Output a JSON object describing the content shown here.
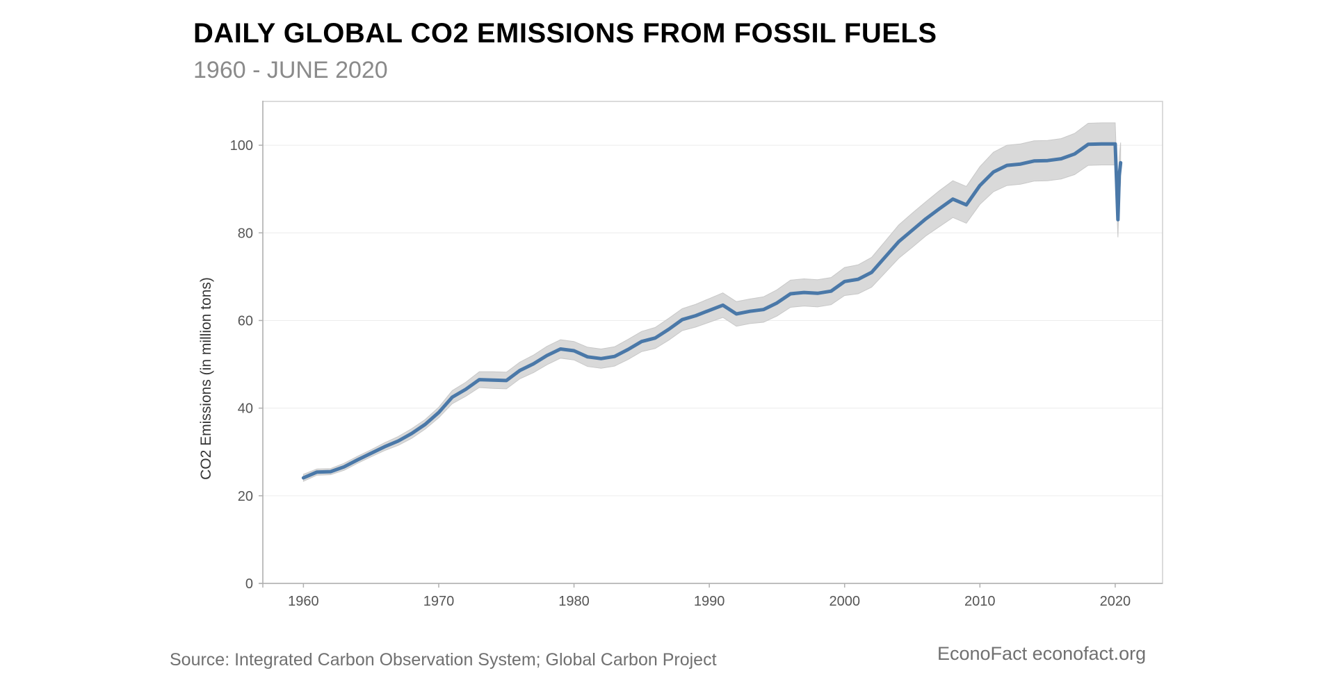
{
  "header": {
    "title": "DAILY GLOBAL CO2 EMISSIONS FROM FOSSIL FUELS",
    "subtitle": "1960 - JUNE 2020"
  },
  "footer": {
    "source": "Source: Integrated Carbon Observation System; Global Carbon Project",
    "brand": "EconoFact  econofact.org"
  },
  "colors": {
    "line": "#4a78a8",
    "band": "#d9d9d9",
    "axis": "#b0b0b0",
    "grid": "#ececec",
    "tick_text": "#555555"
  },
  "chart_data": {
    "type": "line",
    "title": "DAILY GLOBAL CO2 EMISSIONS FROM FOSSIL FUELS",
    "subtitle": "1960 - JUNE 2020",
    "xlabel": "",
    "ylabel": "CO2 Emissions (in million tons)",
    "xlim": [
      1957,
      2023.5
    ],
    "ylim": [
      0,
      110
    ],
    "xticks": [
      1960,
      1970,
      1980,
      1990,
      2000,
      2010,
      2020
    ],
    "yticks": [
      0,
      20,
      40,
      60,
      80,
      100
    ],
    "grid": "horizontal",
    "legend": "none",
    "x": [
      1960,
      1961,
      1962,
      1963,
      1964,
      1965,
      1966,
      1967,
      1968,
      1969,
      1970,
      1971,
      1972,
      1973,
      1974,
      1975,
      1976,
      1977,
      1978,
      1979,
      1980,
      1981,
      1982,
      1983,
      1984,
      1985,
      1986,
      1987,
      1988,
      1989,
      1990,
      1991,
      1992,
      1993,
      1994,
      1995,
      1996,
      1997,
      1998,
      1999,
      2000,
      2001,
      2002,
      2003,
      2004,
      2005,
      2006,
      2007,
      2008,
      2009,
      2010,
      2011,
      2012,
      2013,
      2014,
      2015,
      2016,
      2017,
      2018,
      2019,
      2020.0,
      2020.1,
      2020.2,
      2020.3,
      2020.4
    ],
    "series": [
      {
        "values": [
          24.1,
          25.4,
          25.5,
          26.6,
          28.2,
          29.7,
          31.2,
          32.5,
          34.2,
          36.3,
          39.0,
          42.5,
          44.3,
          46.5,
          46.4,
          46.3,
          48.6,
          50.1,
          52.0,
          53.5,
          53.1,
          51.7,
          51.3,
          51.8,
          53.4,
          55.2,
          56.0,
          58.0,
          60.2,
          61.1,
          62.3,
          63.5,
          61.5,
          62.1,
          62.5,
          64.0,
          66.1,
          66.4,
          66.2,
          66.7,
          68.9,
          69.4,
          71.0,
          74.5,
          78.0,
          80.6,
          83.2,
          85.5,
          87.7,
          86.4,
          90.8,
          93.9,
          95.4,
          95.7,
          96.4,
          96.5,
          96.9,
          98.0,
          100.2,
          100.3,
          100.3,
          92.0,
          83.0,
          93.0,
          96.0
        ],
        "band_low": [
          23.3,
          24.7,
          24.8,
          25.8,
          27.4,
          28.9,
          30.3,
          31.5,
          33.1,
          35.2,
          37.8,
          41.0,
          42.7,
          44.7,
          44.5,
          44.4,
          46.7,
          48.1,
          49.9,
          51.4,
          51.0,
          49.5,
          49.1,
          49.6,
          51.1,
          52.9,
          53.6,
          55.5,
          57.7,
          58.5,
          59.6,
          60.7,
          58.7,
          59.3,
          59.6,
          61.0,
          63.0,
          63.3,
          63.1,
          63.6,
          65.7,
          66.1,
          67.6,
          70.9,
          74.2,
          76.7,
          79.3,
          81.4,
          83.5,
          82.2,
          86.5,
          89.4,
          90.8,
          91.1,
          91.8,
          91.9,
          92.3,
          93.3,
          95.4,
          95.5,
          95.5,
          87.6,
          79.0,
          88.6,
          91.4
        ],
        "band_high": [
          24.9,
          26.1,
          26.2,
          27.4,
          29.0,
          30.5,
          32.1,
          33.5,
          35.3,
          37.4,
          40.2,
          44.0,
          45.9,
          48.3,
          48.3,
          48.2,
          50.5,
          52.1,
          54.1,
          55.6,
          55.2,
          53.9,
          53.5,
          54.0,
          55.7,
          57.5,
          58.4,
          60.5,
          62.7,
          63.7,
          65.0,
          66.3,
          64.3,
          64.9,
          65.4,
          67.0,
          69.2,
          69.5,
          69.3,
          69.8,
          72.1,
          72.7,
          74.4,
          78.1,
          81.8,
          84.5,
          87.1,
          89.6,
          91.9,
          90.6,
          95.1,
          98.4,
          100.0,
          100.3,
          101.0,
          101.1,
          101.5,
          102.7,
          105.0,
          105.1,
          105.1,
          96.4,
          87.0,
          97.4,
          100.6
        ]
      }
    ]
  }
}
